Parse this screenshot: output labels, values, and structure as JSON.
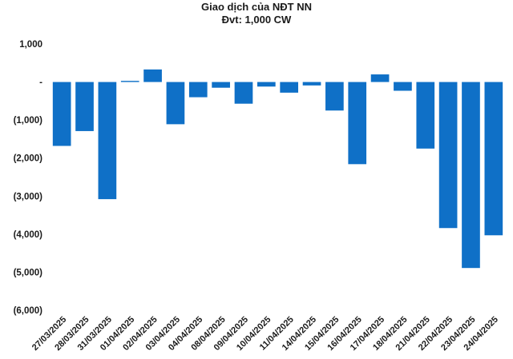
{
  "chart_data": {
    "type": "bar",
    "title": "Giao dịch của NĐT NN",
    "subtitle": "Đvt: 1,000 CW",
    "xlabel": "",
    "ylabel": "",
    "ylim": [
      -6000,
      1000
    ],
    "yticks": [
      1000,
      0,
      -1000,
      -2000,
      -3000,
      -4000,
      -5000,
      -6000
    ],
    "ytick_labels": [
      "1,000",
      "-",
      "(1,000)",
      "(2,000)",
      "(3,000)",
      "(4,000)",
      "(5,000)",
      "(6,000)"
    ],
    "grid": false,
    "legend": "none",
    "bar_color": "#0f70c7",
    "categories": [
      "27/03/2025",
      "28/03/2025",
      "31/03/2025",
      "01/04/2025",
      "02/04/2025",
      "03/04/2025",
      "04/04/2025",
      "08/04/2025",
      "09/04/2025",
      "10/04/2025",
      "11/04/2025",
      "14/04/2025",
      "15/04/2025",
      "16/04/2025",
      "17/04/2025",
      "18/04/2025",
      "21/04/2025",
      "22/04/2025",
      "23/04/2025",
      "24/04/2025"
    ],
    "values": [
      -1680,
      -1290,
      -3080,
      30,
      330,
      -1110,
      -400,
      -150,
      -570,
      -120,
      -280,
      -90,
      -750,
      -2160,
      200,
      -230,
      -1750,
      -3840,
      -4890,
      -4030
    ]
  }
}
